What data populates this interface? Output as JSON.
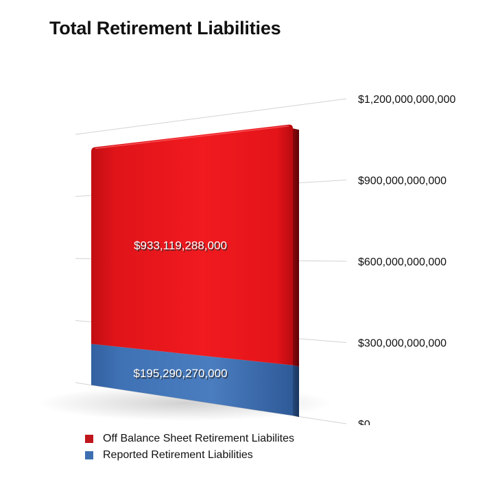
{
  "chart_data": {
    "type": "bar",
    "stacked": true,
    "title": "Total Retirement Liabilities",
    "xlabel": "",
    "ylabel": "",
    "categories": [
      ""
    ],
    "series": [
      {
        "name": "Reported Retirement Liabilities",
        "values": [
          195290270000
        ],
        "value_labels": [
          "$195,290,270,000"
        ],
        "color": "#3d6fb0"
      },
      {
        "name": "Off Balance Sheet Retirement Liabilites",
        "values": [
          933119288000
        ],
        "value_labels": [
          "$933,119,288,000"
        ],
        "color": "#e8141a"
      }
    ],
    "ylim": [
      0,
      1200000000000
    ],
    "y_ticks": [
      {
        "value": 0,
        "label": "$0"
      },
      {
        "value": 300000000000,
        "label": "$300,000,000,000"
      },
      {
        "value": 600000000000,
        "label": "$600,000,000,000"
      },
      {
        "value": 900000000000,
        "label": "$900,000,000,000"
      },
      {
        "value": 1200000000000,
        "label": "$1,200,000,000,000"
      }
    ],
    "grid": true,
    "legend_position": "bottom-left",
    "legend_order": [
      1,
      0
    ],
    "style": "3d"
  }
}
